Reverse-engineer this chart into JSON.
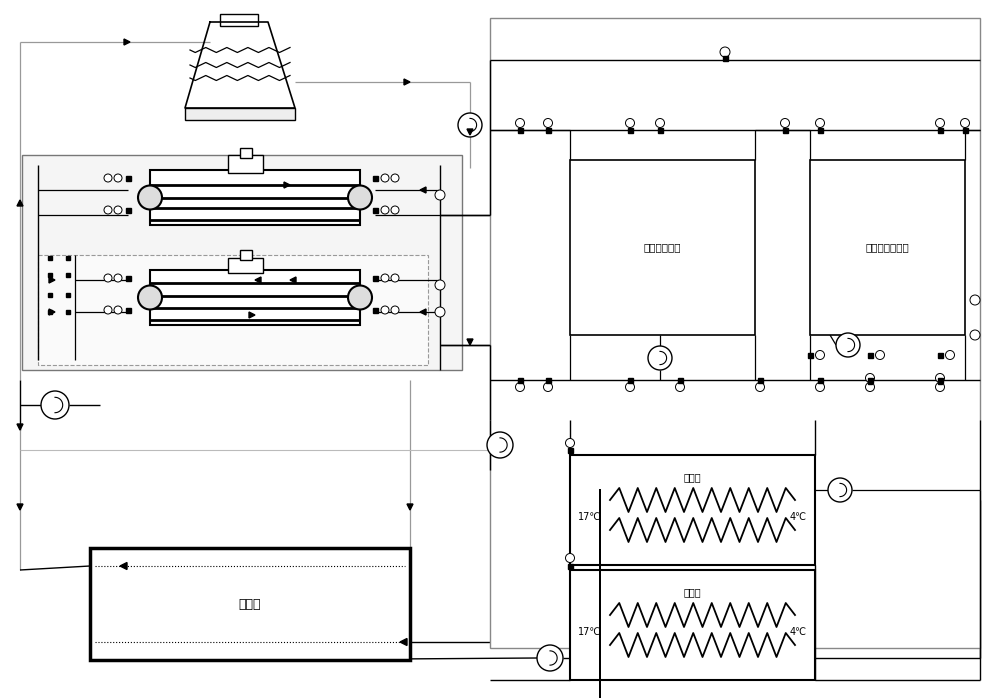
{
  "bg_color": "#ffffff",
  "lc": "#000000",
  "gc": "#999999",
  "figsize": [
    10.0,
    6.98
  ],
  "dpi": 100,
  "labels": {
    "data_center": "数据机房房间",
    "office": "清洁办公房房间",
    "cold_tank": "蓄冷罐",
    "heat_exchanger": "换热器",
    "temp_17": "17℃",
    "temp_4": "4℃"
  }
}
